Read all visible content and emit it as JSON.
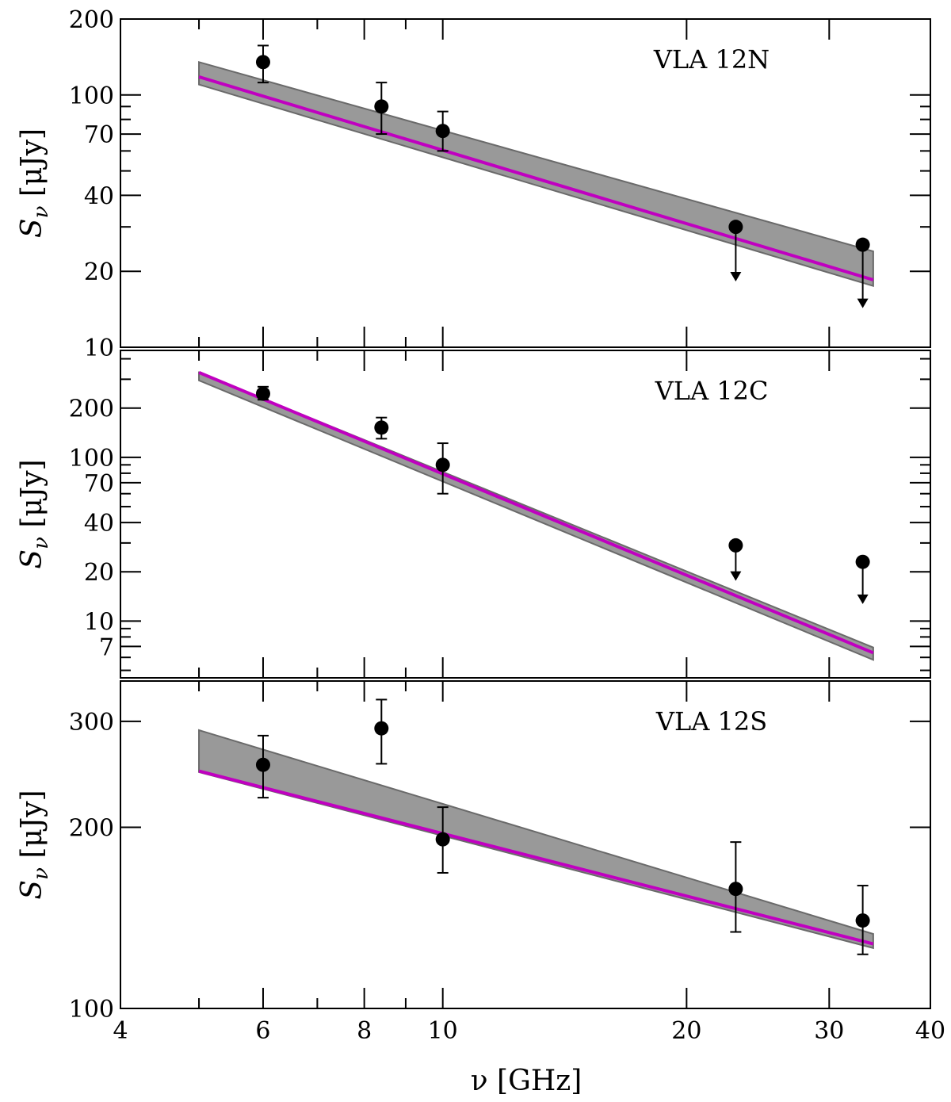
{
  "figure": {
    "xlabel": "ν [GHz]",
    "ylabel": "S_ν [μJy]",
    "ylabel_main": "S",
    "ylabel_sub": "ν",
    "ylabel_unit": "[μJy]"
  },
  "colors": {
    "fit_line": "#c000c0",
    "band_fill": "#999999",
    "band_edge": "#6a6a6a",
    "points": "#000000"
  },
  "chart_data": [
    {
      "type": "scatter",
      "label": "VLA 12N",
      "x_scale": "log",
      "y_scale": "log",
      "xlim": [
        4,
        40
      ],
      "ylim": [
        10,
        200
      ],
      "x_ticks": [
        4,
        6,
        8,
        10,
        20,
        30,
        40
      ],
      "y_ticks": [
        10,
        20,
        40,
        70,
        100,
        200
      ],
      "x_ticklabels_visible": false,
      "points": [
        {
          "x": 6.0,
          "y": 135,
          "err_lo": 23,
          "err_hi": 22
        },
        {
          "x": 8.4,
          "y": 90,
          "err_lo": 20,
          "err_hi": 22
        },
        {
          "x": 10.0,
          "y": 72,
          "err_lo": 12,
          "err_hi": 14
        }
      ],
      "upper_limits": [
        {
          "x": 23.0,
          "y": 30,
          "arrow_to": 18.5
        },
        {
          "x": 33.0,
          "y": 25.5,
          "arrow_to": 14.5
        }
      ],
      "fit": {
        "x": [
          5.0,
          34.0
        ],
        "y": [
          118,
          18.5
        ]
      },
      "band": {
        "x": [
          5.0,
          34.0
        ],
        "upper": [
          135,
          24
        ],
        "lower": [
          110,
          17.5
        ]
      }
    },
    {
      "type": "scatter",
      "label": "VLA 12C",
      "x_scale": "log",
      "y_scale": "log",
      "xlim": [
        4,
        40
      ],
      "ylim": [
        4.5,
        450
      ],
      "x_ticks": [
        4,
        6,
        8,
        10,
        20,
        30,
        40
      ],
      "y_ticks": [
        7,
        10,
        20,
        40,
        70,
        100,
        200
      ],
      "x_ticklabels_visible": false,
      "points": [
        {
          "x": 6.0,
          "y": 245,
          "err_lo": 20,
          "err_hi": 25
        },
        {
          "x": 8.4,
          "y": 152,
          "err_lo": 22,
          "err_hi": 23
        },
        {
          "x": 10.0,
          "y": 90,
          "err_lo": 30,
          "err_hi": 32
        }
      ],
      "upper_limits": [
        {
          "x": 23.0,
          "y": 29,
          "arrow_to": 18
        },
        {
          "x": 33.0,
          "y": 23,
          "arrow_to": 13
        }
      ],
      "fit": {
        "x": [
          5.0,
          34.0
        ],
        "y": [
          330,
          6.4
        ]
      },
      "band": {
        "x": [
          5.0,
          34.0
        ],
        "upper": [
          330,
          6.9
        ],
        "lower": [
          295,
          5.8
        ]
      }
    },
    {
      "type": "scatter",
      "label": "VLA 12S",
      "x_scale": "log",
      "y_scale": "log",
      "xlim": [
        4,
        40
      ],
      "ylim": [
        100,
        350
      ],
      "x_ticks": [
        4,
        6,
        8,
        10,
        20,
        30,
        40
      ],
      "y_ticks": [
        100,
        200,
        300
      ],
      "x_ticklabels": [
        "4",
        "6",
        "8",
        "10",
        "20",
        "30",
        "40"
      ],
      "x_ticklabels_visible": true,
      "points": [
        {
          "x": 6.0,
          "y": 254,
          "err_lo": 30,
          "err_hi": 30
        },
        {
          "x": 8.4,
          "y": 292,
          "err_lo": 37,
          "err_hi": 34
        },
        {
          "x": 10.0,
          "y": 191,
          "err_lo": 23,
          "err_hi": 25
        },
        {
          "x": 23.0,
          "y": 158,
          "err_lo": 24,
          "err_hi": 31
        },
        {
          "x": 33.0,
          "y": 140,
          "err_lo": 17,
          "err_hi": 20
        }
      ],
      "upper_limits": [],
      "fit": {
        "x": [
          5.0,
          34.0
        ],
        "y": [
          248,
          128
        ]
      },
      "band": {
        "x": [
          5.0,
          34.0
        ],
        "upper": [
          290,
          133
        ],
        "lower": [
          247,
          126
        ]
      }
    }
  ]
}
